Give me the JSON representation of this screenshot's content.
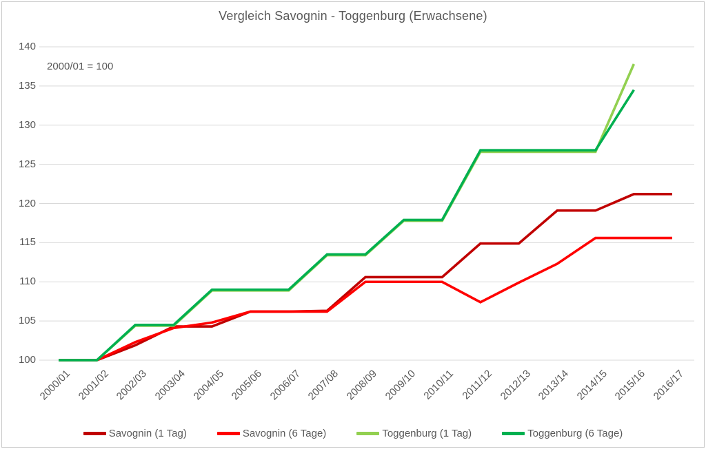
{
  "chart_data": {
    "type": "line",
    "title": "Vergleich Savognin - Toggenburg (Erwachsene)",
    "annotation": "2000/01 = 100",
    "categories": [
      "2000/01",
      "2001/02",
      "2002/03",
      "2003/04",
      "2004/05",
      "2005/06",
      "2006/07",
      "2007/08",
      "2008/09",
      "2009/10",
      "2010/11",
      "2011/12",
      "2012/13",
      "2013/14",
      "2014/15",
      "2015/16",
      "2016/17"
    ],
    "series": [
      {
        "name": "Savognin (1 Tag)",
        "color": "#C00000",
        "values": [
          100,
          100,
          101.9,
          104.3,
          104.3,
          106.2,
          106.2,
          106.3,
          110.6,
          110.6,
          110.6,
          114.9,
          114.9,
          119.1,
          119.1,
          121.2,
          121.2
        ]
      },
      {
        "name": "Savognin (6 Tage)",
        "color": "#FF0000",
        "values": [
          100,
          100,
          102.3,
          104.1,
          104.8,
          106.2,
          106.2,
          106.2,
          110,
          110,
          110,
          107.4,
          109.9,
          112.3,
          115.6,
          115.6,
          115.6
        ]
      },
      {
        "name": "Toggenburg (1 Tag)",
        "color": "#92D050",
        "values": [
          100,
          100,
          104.4,
          104.4,
          108.9,
          108.9,
          108.9,
          113.4,
          113.4,
          117.8,
          117.8,
          126.6,
          126.6,
          126.6,
          126.6,
          137.8,
          null
        ]
      },
      {
        "name": "Toggenburg (6 Tage)",
        "color": "#00B050",
        "values": [
          100,
          100,
          104.5,
          104.5,
          109,
          109,
          109,
          113.5,
          113.5,
          117.9,
          117.9,
          126.8,
          126.8,
          126.8,
          126.8,
          134.5,
          null
        ]
      }
    ],
    "ylim": [
      100,
      140
    ],
    "yticks": [
      100,
      105,
      110,
      115,
      120,
      125,
      130,
      135,
      140
    ],
    "grid": true,
    "legend_position": "bottom",
    "text_color": "#595959",
    "gridline_color": "#D9D9D9"
  }
}
